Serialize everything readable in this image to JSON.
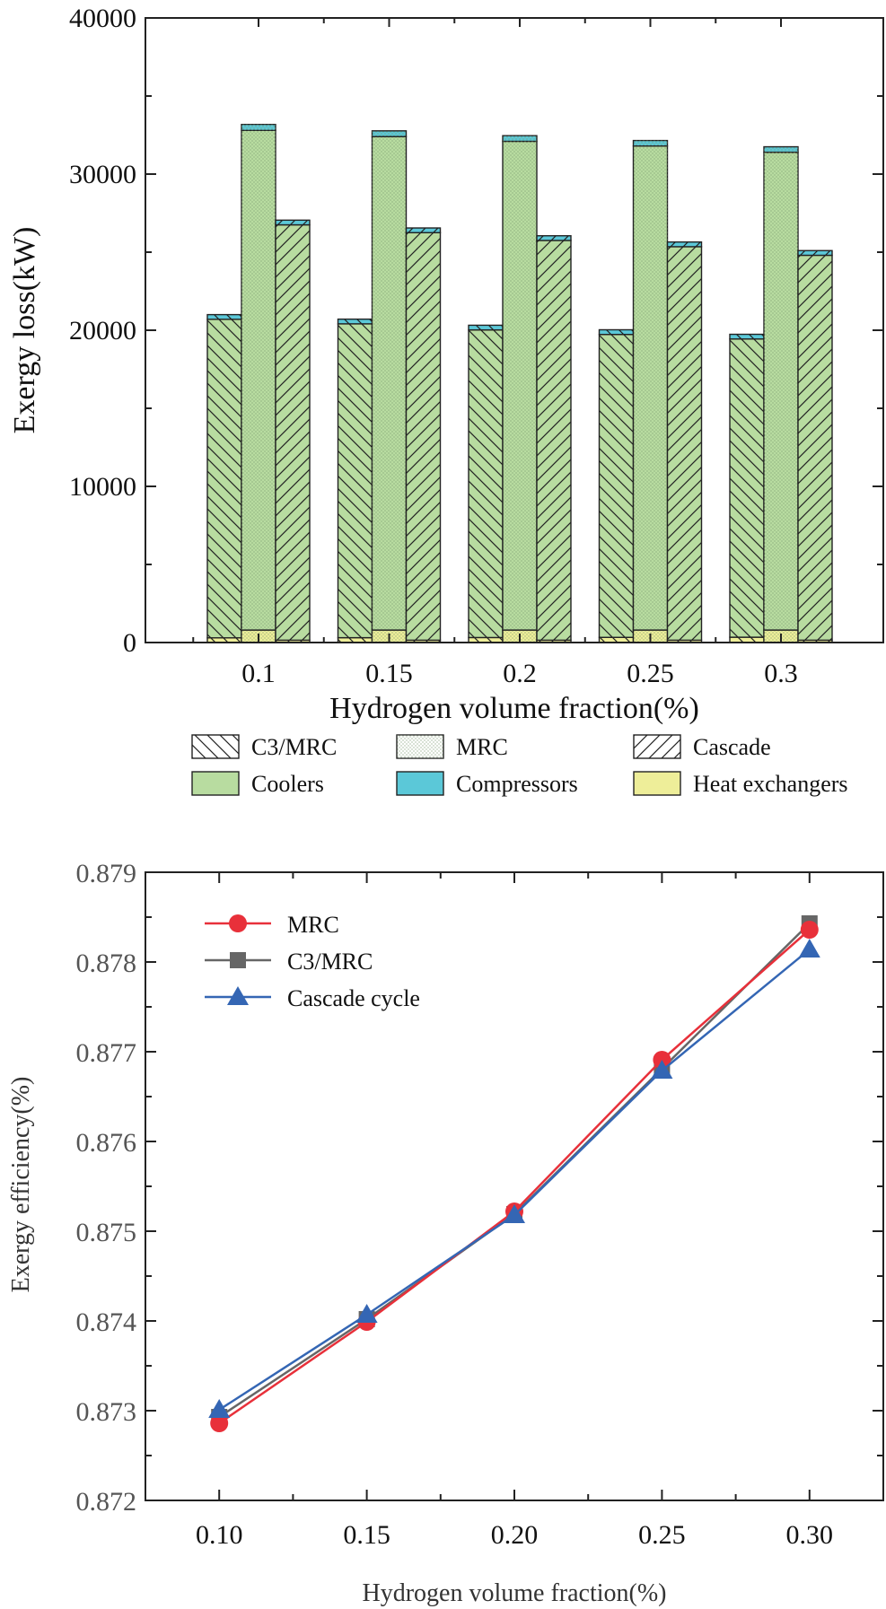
{
  "chart_data": [
    {
      "type": "bar",
      "subtype": "grouped-stacked",
      "title": "",
      "xlabel": "Hydrogen volume fraction(%)",
      "ylabel": "Exergy loss(kW)",
      "ylim": [
        0,
        40000
      ],
      "yticks": [
        0,
        10000,
        20000,
        30000,
        40000
      ],
      "categories": [
        "0.1",
        "0.15",
        "0.2",
        "0.25",
        "0.3"
      ],
      "groups": [
        "C3/MRC",
        "MRC",
        "Cascade"
      ],
      "components": [
        "Heat exchangers",
        "Coolers",
        "Compressors"
      ],
      "component_colors": {
        "Heat exchangers": "#eeee99",
        "Coolers": "#b8dca0",
        "Compressors": "#5bc8d8"
      },
      "series": [
        {
          "name": "C3/MRC",
          "pattern": "backslash",
          "heat_exchangers": [
            300,
            310,
            320,
            330,
            340
          ],
          "coolers": [
            20400,
            20100,
            19700,
            19400,
            19100
          ],
          "compressors": [
            300,
            300,
            300,
            300,
            300
          ]
        },
        {
          "name": "MRC",
          "pattern": "dots",
          "heat_exchangers": [
            800,
            800,
            800,
            800,
            800
          ],
          "coolers": [
            32000,
            31600,
            31300,
            31000,
            30600
          ],
          "compressors": [
            380,
            370,
            360,
            350,
            350
          ]
        },
        {
          "name": "Cascade",
          "pattern": "slash",
          "heat_exchangers": [
            150,
            150,
            150,
            150,
            150
          ],
          "coolers": [
            26600,
            26100,
            25600,
            25200,
            24650
          ],
          "compressors": [
            300,
            300,
            300,
            300,
            300
          ]
        }
      ],
      "legend": [
        "C3/MRC",
        "MRC",
        "Cascade",
        "Coolers",
        "Compressors",
        "Heat exchangers"
      ],
      "legend_location": "bottom"
    },
    {
      "type": "line",
      "title": "",
      "xlabel": "Hydrogen volume fraction(%)",
      "ylabel": "Exergy efficiency(%)",
      "x": [
        0.1,
        0.15,
        0.2,
        0.25,
        0.3
      ],
      "xtick_labels": [
        "0.10",
        "0.15",
        "0.20",
        "0.25",
        "0.30"
      ],
      "xlim": [
        0.075,
        0.325
      ],
      "ylim": [
        0.872,
        0.879
      ],
      "ytick_labels": [
        "0.872",
        "0.873",
        "0.874",
        "0.875",
        "0.876",
        "0.877",
        "0.878",
        "0.879"
      ],
      "series": [
        {
          "name": "MRC",
          "marker": "circle",
          "color": "#e8303a",
          "values": [
            0.87286,
            0.87399,
            0.87522,
            0.87691,
            0.87836
          ]
        },
        {
          "name": "C3/MRC",
          "marker": "square",
          "color": "#666666",
          "values": [
            0.87293,
            0.87402,
            0.87519,
            0.87681,
            0.87843
          ]
        },
        {
          "name": "Cascade cycle",
          "marker": "triangle",
          "color": "#3466b4",
          "values": [
            0.87301,
            0.87407,
            0.87518,
            0.87679,
            0.87814
          ]
        }
      ],
      "legend_location": "top-left"
    }
  ]
}
